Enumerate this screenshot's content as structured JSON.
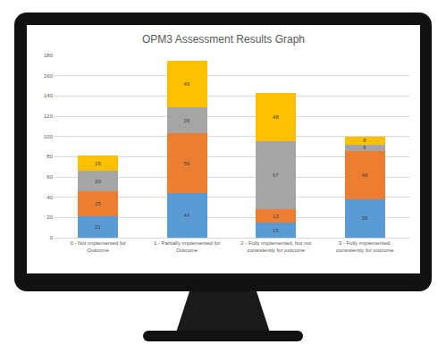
{
  "chart_data": {
    "type": "bar",
    "title": "OPM3 Assessment Results Graph",
    "categories": [
      "0 - Not implemented for Outcome",
      "1 - Partially implemented for Outcome",
      "2 - Fully implemented, but not consistently for outcome",
      "3 - Fully implemented; consistently for outcome"
    ],
    "series": [
      {
        "color": "#5B9BD5",
        "values": [
          21,
          44,
          15,
          38
        ]
      },
      {
        "color": "#ED7D31",
        "values": [
          25,
          59,
          13,
          48
        ]
      },
      {
        "color": "#A5A5A5",
        "values": [
          20,
          26,
          67,
          6
        ]
      },
      {
        "color": "#FFC000",
        "values": [
          15,
          46,
          48,
          8
        ]
      }
    ],
    "stacked": true,
    "data_labels": true,
    "grid": true,
    "ylim": [
      0,
      180
    ],
    "yticks": [
      0,
      20,
      40,
      60,
      80,
      100,
      120,
      140,
      160,
      180
    ]
  }
}
